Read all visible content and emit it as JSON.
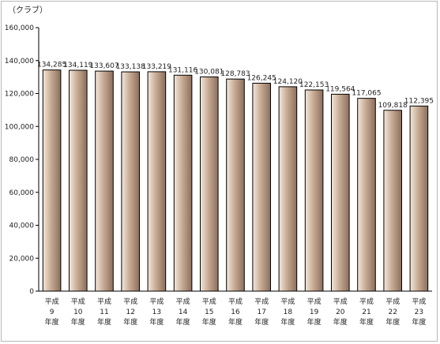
{
  "chart_data": {
    "type": "bar",
    "unit_label": "（クラブ）",
    "ylim": [
      0,
      160000
    ],
    "yticks": [
      "0",
      "20,000",
      "40,000",
      "60,000",
      "80,000",
      "100,000",
      "120,000",
      "140,000",
      "160,000"
    ],
    "ytick_values": [
      0,
      20000,
      40000,
      60000,
      80000,
      100000,
      120000,
      140000,
      160000
    ],
    "grid": false,
    "legend": "none",
    "categories": [
      [
        "平成",
        "9",
        "年度"
      ],
      [
        "平成",
        "10",
        "年度"
      ],
      [
        "平成",
        "11",
        "年度"
      ],
      [
        "平成",
        "12",
        "年度"
      ],
      [
        "平成",
        "13",
        "年度"
      ],
      [
        "平成",
        "14",
        "年度"
      ],
      [
        "平成",
        "15",
        "年度"
      ],
      [
        "平成",
        "16",
        "年度"
      ],
      [
        "平成",
        "17",
        "年度"
      ],
      [
        "平成",
        "18",
        "年度"
      ],
      [
        "平成",
        "19",
        "年度"
      ],
      [
        "平成",
        "20",
        "年度"
      ],
      [
        "平成",
        "21",
        "年度"
      ],
      [
        "平成",
        "22",
        "年度"
      ],
      [
        "平成",
        "23",
        "年度"
      ]
    ],
    "values": [
      134285,
      134119,
      133607,
      133138,
      133219,
      131116,
      130081,
      128783,
      126245,
      124120,
      122153,
      119564,
      117065,
      109818,
      112395
    ],
    "value_labels": [
      "134,285",
      "134,119",
      "133,607",
      "133,138",
      "133,219",
      "131,116",
      "130,081",
      "128,783",
      "126,245",
      "124,120",
      "122,153",
      "119,564",
      "117,065",
      "109,818",
      "112,395"
    ],
    "colors": {
      "bar_light": "#f3e8dc",
      "bar_mid": "#c8ab94",
      "bar_dark": "#8c6f5c",
      "outline": "#000000"
    }
  }
}
